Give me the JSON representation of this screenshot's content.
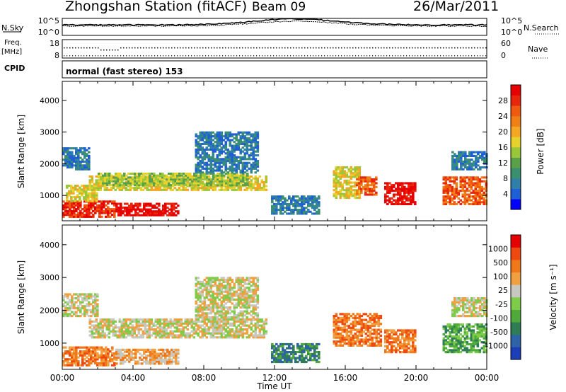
{
  "header": {
    "title": "Zhongshan Station (fitACF)",
    "beam": "Beam 09",
    "date": "26/Mar/2011"
  },
  "strip_sky": {
    "left_label": "N.Sky",
    "right_label": "N.Search",
    "left_ticks": [
      "10^5",
      "10^0"
    ],
    "right_ticks": [
      "10^5",
      "10^0"
    ]
  },
  "strip_freq": {
    "left_label_1": "Freq.",
    "left_label_2": "[MHz]",
    "right_label": "Nave",
    "left_ticks": [
      "18",
      "8"
    ],
    "right_ticks": [
      "60",
      "0"
    ]
  },
  "cpid": {
    "label": "CPID",
    "value": "normal (fast stereo) 153"
  },
  "chart_data": [
    {
      "type": "heatmap",
      "quantity": "Power",
      "ylabel": "Slant Range [km]",
      "xlabel": "Time UT",
      "x_ticks": [
        "00:00",
        "04:00",
        "08:00",
        "12:00",
        "16:00",
        "20:00",
        "00:00"
      ],
      "y_ticks": [
        1000,
        2000,
        3000,
        4000
      ],
      "ylim": [
        200,
        4600
      ],
      "xlim_hours": [
        0,
        24
      ],
      "colorbar": {
        "label": "Power [dB]",
        "ticks": [
          "4",
          "8",
          "12",
          "16",
          "20",
          "24",
          "28"
        ],
        "colors": [
          "#0000ff",
          "#1f5fd6",
          "#2f7fa8",
          "#3a8f6f",
          "#5aa04a",
          "#9ac63a",
          "#e6d22c",
          "#f5a623",
          "#f07f16",
          "#ef5a10",
          "#e8260c",
          "#e60000"
        ]
      },
      "echo_regions": [
        {
          "t0": 0.0,
          "t1": 3.0,
          "r0": 300,
          "r1": 800,
          "level": 10
        },
        {
          "t0": 3.0,
          "t1": 6.5,
          "r0": 350,
          "r1": 750,
          "level": 11
        },
        {
          "t0": 0.2,
          "t1": 2.0,
          "r0": 800,
          "r1": 1300,
          "level": 6
        },
        {
          "t0": 1.5,
          "t1": 11.5,
          "r0": 1150,
          "r1": 1600,
          "level": 6
        },
        {
          "t0": 2.0,
          "t1": 10.5,
          "r0": 1300,
          "r1": 1700,
          "level": 5
        },
        {
          "t0": 0.0,
          "t1": 1.5,
          "r0": 1800,
          "r1": 2500,
          "level": 2
        },
        {
          "t0": 7.5,
          "t1": 11.0,
          "r0": 1700,
          "r1": 3000,
          "level": 2
        },
        {
          "t0": 11.8,
          "t1": 14.5,
          "r0": 400,
          "r1": 1000,
          "level": 2
        },
        {
          "t0": 15.3,
          "t1": 16.8,
          "r0": 900,
          "r1": 1900,
          "level": 6
        },
        {
          "t0": 16.6,
          "t1": 17.8,
          "r0": 1000,
          "r1": 1600,
          "level": 9
        },
        {
          "t0": 18.2,
          "t1": 20.0,
          "r0": 700,
          "r1": 1400,
          "level": 11
        },
        {
          "t0": 21.5,
          "t1": 24.0,
          "r0": 700,
          "r1": 1600,
          "level": 9
        },
        {
          "t0": 22.0,
          "t1": 24.0,
          "r0": 1800,
          "r1": 2400,
          "level": 2
        }
      ]
    },
    {
      "type": "heatmap",
      "quantity": "Velocity",
      "ylabel": "Slant Range [km]",
      "xlabel": "Time UT",
      "x_ticks": [
        "00:00",
        "04:00",
        "08:00",
        "12:00",
        "16:00",
        "20:00",
        "00:00"
      ],
      "y_ticks": [
        1000,
        2000,
        3000,
        4000
      ],
      "ylim": [
        200,
        4600
      ],
      "xlim_hours": [
        0,
        24
      ],
      "colorbar": {
        "label": "Velocity [m s⁻¹]",
        "ticks": [
          "1000",
          "500",
          "100",
          "25",
          "-25",
          "-100",
          "-500",
          "-1000"
        ],
        "colors": [
          "#1c3fb8",
          "#2f63a8",
          "#2e7d55",
          "#4faa3a",
          "#7fcc4a",
          "#c8c8c0",
          "#f0a040",
          "#f07818",
          "#ee4a10",
          "#e60000"
        ]
      },
      "echo_regions": [
        {
          "t0": 0.0,
          "t1": 2.0,
          "r0": 1800,
          "r1": 2500,
          "level": 5
        },
        {
          "t0": 1.5,
          "t1": 11.5,
          "r0": 1150,
          "r1": 1700,
          "level": 5
        },
        {
          "t0": 7.5,
          "t1": 11.0,
          "r0": 1700,
          "r1": 3000,
          "level": 5
        },
        {
          "t0": 0.0,
          "t1": 3.0,
          "r0": 300,
          "r1": 900,
          "level": 7
        },
        {
          "t0": 3.0,
          "t1": 6.5,
          "r0": 350,
          "r1": 800,
          "level": 6
        },
        {
          "t0": 11.8,
          "t1": 14.5,
          "r0": 400,
          "r1": 1000,
          "level": 2
        },
        {
          "t0": 15.3,
          "t1": 18.0,
          "r0": 900,
          "r1": 1900,
          "level": 7
        },
        {
          "t0": 18.2,
          "t1": 20.0,
          "r0": 700,
          "r1": 1400,
          "level": 7
        },
        {
          "t0": 21.5,
          "t1": 24.0,
          "r0": 700,
          "r1": 1600,
          "level": 3
        },
        {
          "t0": 22.0,
          "t1": 24.0,
          "r0": 1800,
          "r1": 2400,
          "level": 5
        }
      ]
    }
  ],
  "strip_series": {
    "sky_level": 0.55,
    "search_level": 0.62,
    "freq_level": 0.35,
    "nave_level": 0.3
  }
}
